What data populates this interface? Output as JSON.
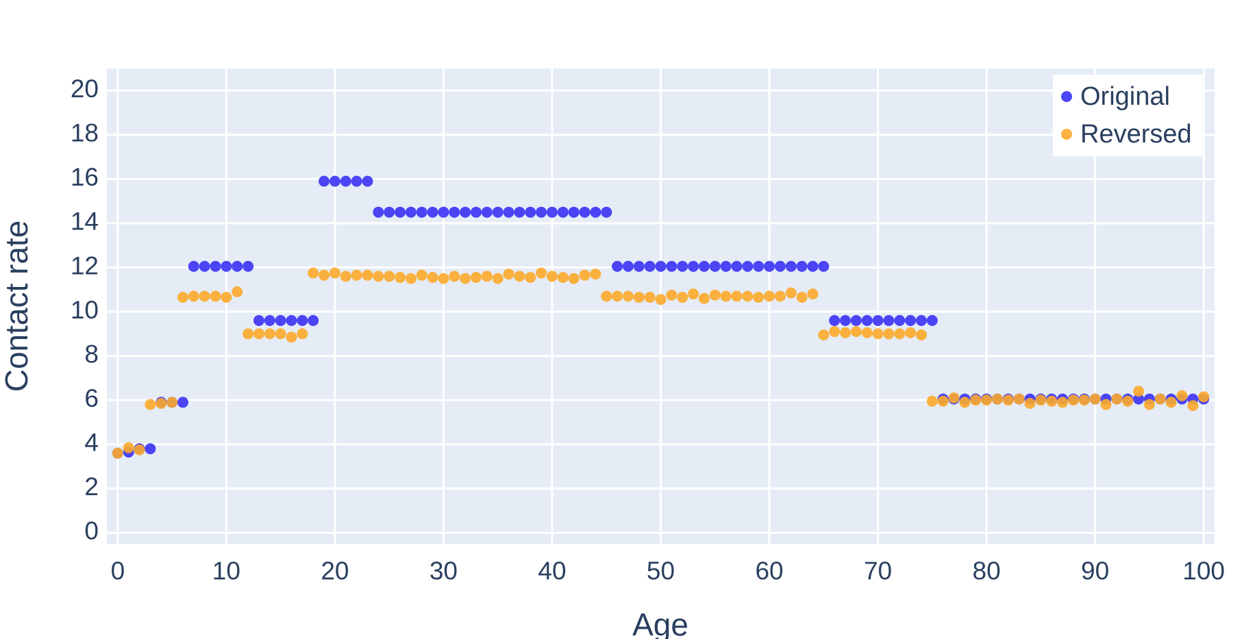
{
  "chart_data": {
    "type": "scatter",
    "xlabel": "Age",
    "ylabel": "Contact rate",
    "x": [
      0,
      1,
      2,
      3,
      4,
      5,
      6,
      7,
      8,
      9,
      10,
      11,
      12,
      13,
      14,
      15,
      16,
      17,
      18,
      19,
      20,
      21,
      22,
      23,
      24,
      25,
      26,
      27,
      28,
      29,
      30,
      31,
      32,
      33,
      34,
      35,
      36,
      37,
      38,
      39,
      40,
      41,
      42,
      43,
      44,
      45,
      46,
      47,
      48,
      49,
      50,
      51,
      52,
      53,
      54,
      55,
      56,
      57,
      58,
      59,
      60,
      61,
      62,
      63,
      64,
      65,
      66,
      67,
      68,
      69,
      70,
      71,
      72,
      73,
      74,
      75,
      76,
      77,
      78,
      79,
      80,
      81,
      82,
      83,
      84,
      85,
      86,
      87,
      88,
      89,
      90,
      91,
      92,
      93,
      94,
      95,
      96,
      97,
      98,
      99,
      100
    ],
    "series": [
      {
        "name": "Original",
        "color": "#3a32f5",
        "values": [
          3.6,
          3.65,
          3.8,
          3.8,
          5.9,
          5.9,
          5.9,
          12.05,
          12.05,
          12.05,
          12.05,
          12.05,
          12.05,
          9.6,
          9.6,
          9.6,
          9.6,
          9.6,
          9.6,
          15.9,
          15.9,
          15.9,
          15.9,
          15.9,
          14.5,
          14.5,
          14.5,
          14.5,
          14.5,
          14.5,
          14.5,
          14.5,
          14.5,
          14.5,
          14.5,
          14.5,
          14.5,
          14.5,
          14.5,
          14.5,
          14.5,
          14.5,
          14.5,
          14.5,
          14.5,
          14.5,
          12.05,
          12.05,
          12.05,
          12.05,
          12.05,
          12.05,
          12.05,
          12.05,
          12.05,
          12.05,
          12.05,
          12.05,
          12.05,
          12.05,
          12.05,
          12.05,
          12.05,
          12.05,
          12.05,
          12.05,
          9.6,
          9.6,
          9.6,
          9.6,
          9.6,
          9.6,
          9.6,
          9.6,
          9.6,
          9.6,
          6.05,
          6.05,
          6.05,
          6.05,
          6.05,
          6.05,
          6.05,
          6.05,
          6.05,
          6.05,
          6.05,
          6.05,
          6.05,
          6.05,
          6.05,
          6.05,
          6.05,
          6.05,
          6.05,
          6.05,
          6.05,
          6.05,
          6.05,
          6.05,
          6.05
        ]
      },
      {
        "name": "Reversed",
        "color": "#fcaa2a",
        "values": [
          3.6,
          3.85,
          3.75,
          5.8,
          5.85,
          5.9,
          10.65,
          10.7,
          10.7,
          10.7,
          10.65,
          10.9,
          9.0,
          9.0,
          9.0,
          9.0,
          8.85,
          9.0,
          11.75,
          11.65,
          11.75,
          11.6,
          11.65,
          11.65,
          11.6,
          11.6,
          11.55,
          11.5,
          11.65,
          11.55,
          11.5,
          11.6,
          11.5,
          11.55,
          11.6,
          11.5,
          11.7,
          11.6,
          11.55,
          11.75,
          11.6,
          11.55,
          11.5,
          11.65,
          11.7,
          10.7,
          10.7,
          10.7,
          10.65,
          10.65,
          10.55,
          10.75,
          10.65,
          10.8,
          10.6,
          10.75,
          10.7,
          10.7,
          10.7,
          10.65,
          10.7,
          10.7,
          10.85,
          10.65,
          10.8,
          8.95,
          9.1,
          9.05,
          9.1,
          9.05,
          9.0,
          9.0,
          9.0,
          9.05,
          8.95,
          5.95,
          5.95,
          6.1,
          5.9,
          6.0,
          6.0,
          6.05,
          6.0,
          6.05,
          5.85,
          6.0,
          5.95,
          5.9,
          6.0,
          6.0,
          6.05,
          5.8,
          6.05,
          5.95,
          6.4,
          5.8,
          6.05,
          5.9,
          6.2,
          5.75,
          6.15
        ]
      }
    ],
    "xlim": [
      -1,
      101
    ],
    "ylim": [
      -0.5,
      21
    ],
    "xticks": [
      0,
      10,
      20,
      30,
      40,
      50,
      60,
      70,
      80,
      90,
      100
    ],
    "yticks": [
      0,
      2,
      4,
      6,
      8,
      10,
      12,
      14,
      16,
      18,
      20
    ],
    "grid": true,
    "legend": "top-right"
  }
}
